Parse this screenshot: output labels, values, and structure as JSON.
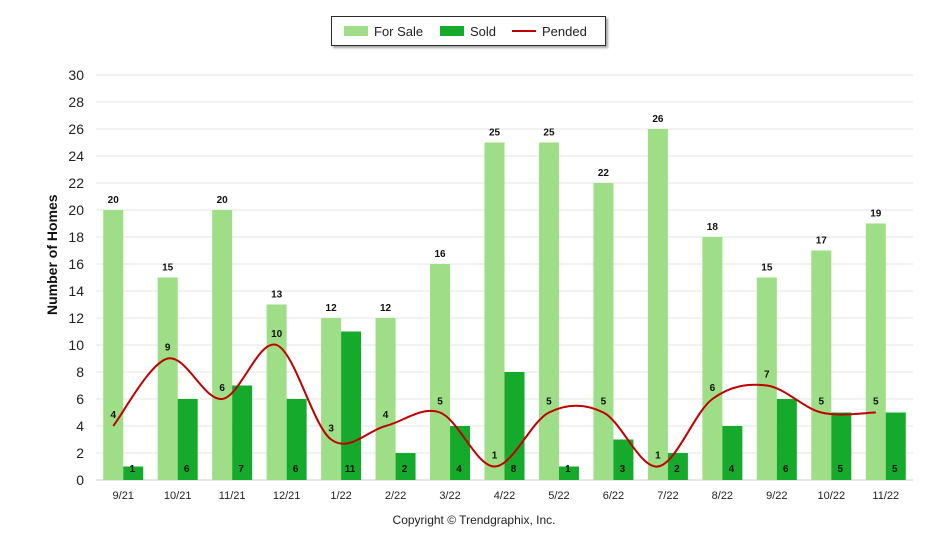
{
  "chart_data": {
    "type": "bar",
    "categories": [
      "9/21",
      "10/21",
      "11/21",
      "12/21",
      "1/22",
      "2/22",
      "3/22",
      "4/22",
      "5/22",
      "6/22",
      "7/22",
      "8/22",
      "9/22",
      "10/22",
      "11/22"
    ],
    "series": [
      {
        "name": "For Sale",
        "kind": "bar",
        "values": [
          20,
          15,
          20,
          13,
          12,
          12,
          16,
          25,
          25,
          22,
          26,
          18,
          15,
          17,
          19
        ]
      },
      {
        "name": "Sold",
        "kind": "bar",
        "values": [
          1,
          6,
          7,
          6,
          11,
          2,
          4,
          8,
          1,
          3,
          2,
          4,
          6,
          5,
          5
        ]
      },
      {
        "name": "Pended",
        "kind": "line",
        "values": [
          4,
          9,
          6,
          10,
          3,
          4,
          5,
          1,
          5,
          5,
          1,
          6,
          7,
          5,
          5
        ]
      }
    ],
    "xlabel": "",
    "ylabel": "Number of Homes",
    "ylim": [
      0,
      30
    ],
    "yticks": [
      0,
      2,
      4,
      6,
      8,
      10,
      12,
      14,
      16,
      18,
      20,
      22,
      24,
      26,
      28,
      30
    ],
    "grid": true,
    "legend_position": "top-center",
    "colors": {
      "For Sale": "#9ede86",
      "Sold": "#16aa2c",
      "Pended": "#c00000"
    }
  },
  "footer": {
    "copyright": "Copyright © Trendgraphix, Inc."
  }
}
